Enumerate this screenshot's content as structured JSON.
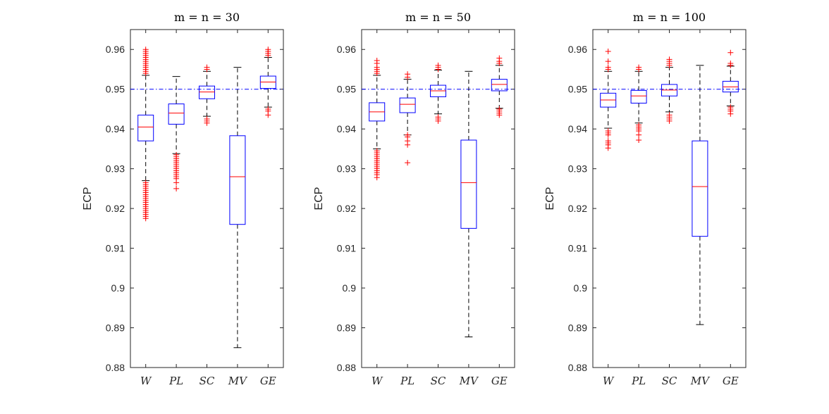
{
  "chart_data": [
    {
      "type": "box",
      "title": "m = n = 30",
      "ylabel": "ECP",
      "xlabel": "",
      "ylim": [
        0.88,
        0.965
      ],
      "yticks": [
        0.88,
        0.89,
        0.9,
        0.91,
        0.92,
        0.93,
        0.94,
        0.95,
        0.96
      ],
      "ytick_labels": [
        "0.88",
        "0.89",
        "0.9",
        "0.91",
        "0.92",
        "0.93",
        "0.94",
        "0.95",
        "0.96"
      ],
      "reference_line": 0.95,
      "categories": [
        "W",
        "PL",
        "SC",
        "MV",
        "GE"
      ],
      "boxes": [
        {
          "q1": 0.937,
          "median": 0.9405,
          "q3": 0.9435,
          "whisker_low": 0.927,
          "whisker_high": 0.9535,
          "outliers": [
            0.9175,
            0.918,
            0.9185,
            0.919,
            0.9195,
            0.92,
            0.9205,
            0.921,
            0.9215,
            0.922,
            0.9225,
            0.923,
            0.9235,
            0.924,
            0.9245,
            0.925,
            0.9255,
            0.926,
            0.9265,
            0.954,
            0.9545,
            0.955,
            0.9555,
            0.956,
            0.9565,
            0.957,
            0.9575,
            0.958,
            0.9585,
            0.959,
            0.9595,
            0.96
          ]
        },
        {
          "q1": 0.9412,
          "median": 0.944,
          "q3": 0.9463,
          "whisker_low": 0.9338,
          "whisker_high": 0.9532,
          "outliers": [
            0.925,
            0.9265,
            0.9275,
            0.928,
            0.9285,
            0.929,
            0.9295,
            0.93,
            0.9305,
            0.931,
            0.9315,
            0.932,
            0.9325,
            0.933,
            0.9335
          ]
        },
        {
          "q1": 0.9476,
          "median": 0.9493,
          "q3": 0.9508,
          "whisker_low": 0.9432,
          "whisker_high": 0.9545,
          "outliers": [
            0.9415,
            0.942,
            0.9425,
            0.955,
            0.9555
          ]
        },
        {
          "q1": 0.916,
          "median": 0.928,
          "q3": 0.9383,
          "whisker_low": 0.885,
          "whisker_high": 0.9555,
          "outliers": []
        },
        {
          "q1": 0.9502,
          "median": 0.9518,
          "q3": 0.9533,
          "whisker_low": 0.9455,
          "whisker_high": 0.958,
          "outliers": [
            0.9435,
            0.9445,
            0.945,
            0.9585,
            0.959,
            0.9595,
            0.96
          ]
        }
      ]
    },
    {
      "type": "box",
      "title": "m = n = 50",
      "ylabel": "ECP",
      "xlabel": "",
      "ylim": [
        0.88,
        0.965
      ],
      "yticks": [
        0.88,
        0.89,
        0.9,
        0.91,
        0.92,
        0.93,
        0.94,
        0.95,
        0.96
      ],
      "ytick_labels": [
        "0.88",
        "0.89",
        "0.9",
        "0.91",
        "0.92",
        "0.93",
        "0.94",
        "0.95",
        "0.96"
      ],
      "reference_line": 0.95,
      "categories": [
        "W",
        "PL",
        "SC",
        "MV",
        "GE"
      ],
      "boxes": [
        {
          "q1": 0.942,
          "median": 0.9443,
          "q3": 0.9466,
          "whisker_low": 0.935,
          "whisker_high": 0.9535,
          "outliers": [
            0.9278,
            0.9285,
            0.929,
            0.9295,
            0.93,
            0.9305,
            0.931,
            0.9315,
            0.932,
            0.9325,
            0.933,
            0.9335,
            0.934,
            0.9345,
            0.954,
            0.9545,
            0.955,
            0.9555,
            0.9565,
            0.9572
          ]
        },
        {
          "q1": 0.9441,
          "median": 0.9462,
          "q3": 0.9478,
          "whisker_low": 0.9385,
          "whisker_high": 0.9525,
          "outliers": [
            0.9315,
            0.936,
            0.937,
            0.938,
            0.9385,
            0.953,
            0.9538
          ]
        },
        {
          "q1": 0.9481,
          "median": 0.9496,
          "q3": 0.951,
          "whisker_low": 0.9438,
          "whisker_high": 0.9548,
          "outliers": [
            0.942,
            0.9425,
            0.943,
            0.955,
            0.9555,
            0.956
          ]
        },
        {
          "q1": 0.915,
          "median": 0.9265,
          "q3": 0.9372,
          "whisker_low": 0.8877,
          "whisker_high": 0.9545,
          "outliers": []
        },
        {
          "q1": 0.9496,
          "median": 0.9512,
          "q3": 0.9525,
          "whisker_low": 0.9452,
          "whisker_high": 0.956,
          "outliers": [
            0.9435,
            0.944,
            0.9445,
            0.945,
            0.9565,
            0.957,
            0.9578
          ]
        }
      ]
    },
    {
      "type": "box",
      "title": "m = n = 100",
      "ylabel": "ECP",
      "xlabel": "",
      "ylim": [
        0.88,
        0.965
      ],
      "yticks": [
        0.88,
        0.89,
        0.9,
        0.91,
        0.92,
        0.93,
        0.94,
        0.95,
        0.96
      ],
      "ytick_labels": [
        "0.88",
        "0.89",
        "0.9",
        "0.91",
        "0.92",
        "0.93",
        "0.94",
        "0.95",
        "0.96"
      ],
      "reference_line": 0.95,
      "categories": [
        "W",
        "PL",
        "SC",
        "MV",
        "GE"
      ],
      "boxes": [
        {
          "q1": 0.9455,
          "median": 0.9473,
          "q3": 0.949,
          "whisker_low": 0.9402,
          "whisker_high": 0.9545,
          "outliers": [
            0.9352,
            0.936,
            0.9365,
            0.937,
            0.9385,
            0.939,
            0.9395,
            0.955,
            0.9555,
            0.957,
            0.9595
          ]
        },
        {
          "q1": 0.9465,
          "median": 0.9483,
          "q3": 0.9497,
          "whisker_low": 0.9415,
          "whisker_high": 0.9545,
          "outliers": [
            0.9372,
            0.9385,
            0.9395,
            0.94,
            0.9405,
            0.941,
            0.955,
            0.9555
          ]
        },
        {
          "q1": 0.9483,
          "median": 0.9498,
          "q3": 0.9512,
          "whisker_low": 0.9443,
          "whisker_high": 0.9555,
          "outliers": [
            0.942,
            0.9425,
            0.943,
            0.9435,
            0.956,
            0.9565,
            0.957,
            0.9575
          ]
        },
        {
          "q1": 0.913,
          "median": 0.9255,
          "q3": 0.937,
          "whisker_low": 0.8908,
          "whisker_high": 0.956,
          "outliers": []
        },
        {
          "q1": 0.9493,
          "median": 0.9506,
          "q3": 0.952,
          "whisker_low": 0.9458,
          "whisker_high": 0.9558,
          "outliers": [
            0.9438,
            0.9445,
            0.945,
            0.9455,
            0.956,
            0.9565,
            0.9592
          ]
        }
      ]
    }
  ],
  "colors": {
    "box": "#0000ff",
    "median": "#ff0000",
    "outlier": "#ff0000",
    "whisker": "#000000",
    "reference_line": "#0000ff",
    "axis": "#262626"
  }
}
